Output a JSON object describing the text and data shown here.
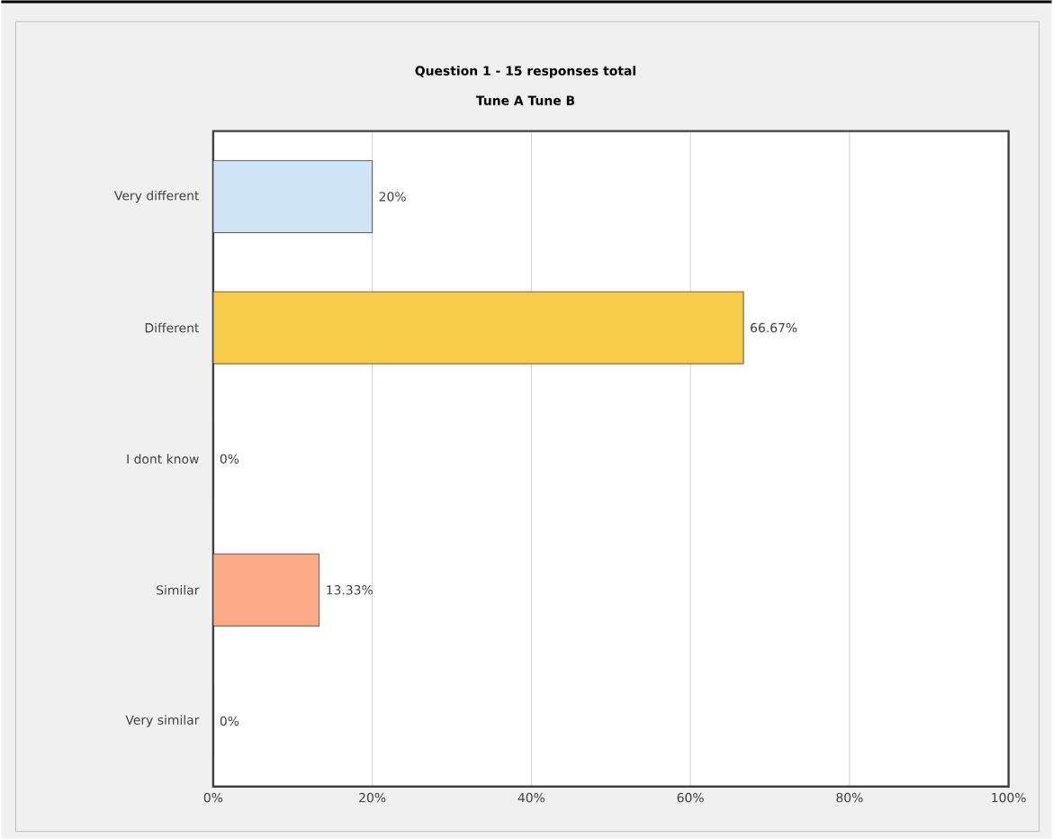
{
  "chart_data": {
    "type": "bar",
    "orientation": "horizontal",
    "title": "Question 1 - 15 responses total",
    "subtitle": "Tune A Tune B",
    "categories": [
      "Very different",
      "Different",
      "I dont know",
      "Similar",
      "Very similar"
    ],
    "values": [
      20,
      66.67,
      0,
      13.33,
      0
    ],
    "colors": [
      "#cfe5f7",
      "#f6cc48",
      "#d0d0d0",
      "#fbac86",
      "#d0d0d0"
    ],
    "value_labels": [
      "20%",
      "66.67%",
      "0%",
      "13.33%",
      "0%"
    ],
    "xlim": [
      0,
      100
    ],
    "xticks": [
      {
        "value": 0,
        "label": "0%"
      },
      {
        "value": 20,
        "label": "20%"
      },
      {
        "value": 40,
        "label": "40%"
      },
      {
        "value": 60,
        "label": "60%"
      },
      {
        "value": 80,
        "label": "80%"
      },
      {
        "value": 100,
        "label": "100%"
      }
    ],
    "grid": "x"
  }
}
